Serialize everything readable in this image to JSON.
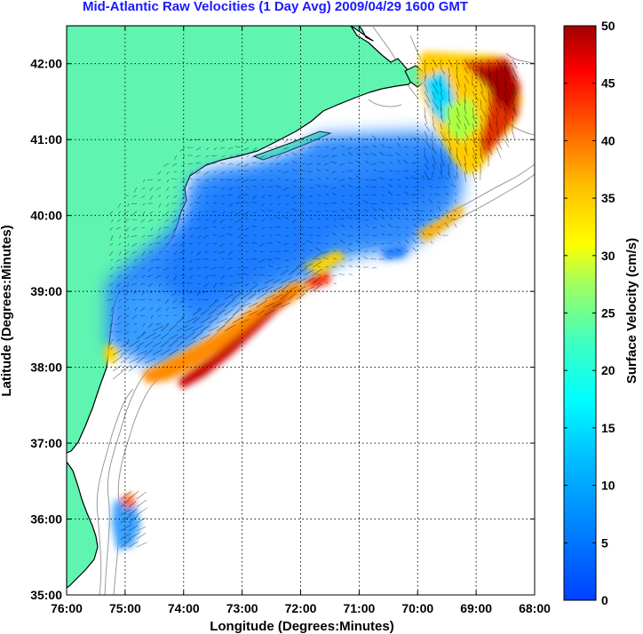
{
  "title": "Mid-Atlantic Raw Velocities (1 Day Avg) 2009/04/29 1600 GMT",
  "x_axis": {
    "label": "Longitude (Degrees:Minutes)",
    "ticks": [
      "76:00",
      "75:00",
      "74:00",
      "73:00",
      "72:00",
      "71:00",
      "70:00",
      "69:00",
      "68:00"
    ]
  },
  "y_axis": {
    "label": "Latitude (Degrees:Minutes)",
    "ticks": [
      "42:00",
      "41:00",
      "40:00",
      "39:00",
      "38:00",
      "37:00",
      "36:00",
      "35:00"
    ]
  },
  "colorbar": {
    "label": "Surface Velocity (cm/s)",
    "ticks": [
      "50",
      "45",
      "40",
      "35",
      "30",
      "25",
      "20",
      "15",
      "10",
      "5",
      "0"
    ],
    "range": [
      0,
      50
    ],
    "colormap": "jet"
  },
  "colors": {
    "land": "#5ff5b0",
    "title": "#1a1aff",
    "bathymetry": "#9a9a9a",
    "grid": "#000000"
  },
  "map_extent": {
    "lon": [
      -76,
      -68
    ],
    "lat": [
      35,
      42.5
    ]
  }
}
